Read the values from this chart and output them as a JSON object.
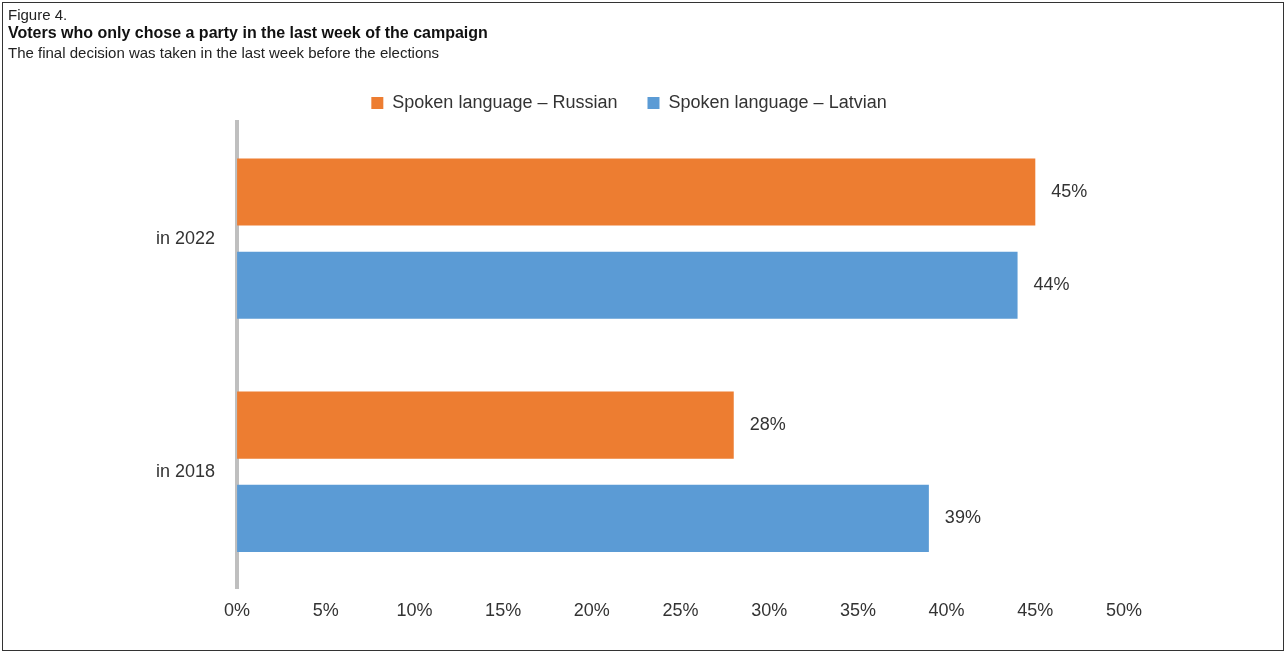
{
  "chart_data": {
    "type": "bar",
    "orientation": "horizontal",
    "title": "Voters who only chose a party in the last week of the campaign",
    "subtitle": "The final decision was taken in the last week before the elections",
    "annotations": [
      "Figure 4."
    ],
    "categories": [
      "in 2022",
      "in 2018"
    ],
    "series": [
      {
        "name": "Spoken language – Russian",
        "color": "#ed7d31",
        "values": [
          45,
          28
        ],
        "value_labels": [
          "45%",
          "28%"
        ]
      },
      {
        "name": "Spoken language – Latvian",
        "color": "#5b9bd5",
        "values": [
          44,
          39
        ],
        "value_labels": [
          "44%",
          "39%"
        ]
      }
    ],
    "xlim": [
      0,
      50
    ],
    "xticks": [
      {
        "value": 0,
        "label": "0%"
      },
      {
        "value": 5,
        "label": "5%"
      },
      {
        "value": 10,
        "label": "10%"
      },
      {
        "value": 15,
        "label": "15%"
      },
      {
        "value": 20,
        "label": "20%"
      },
      {
        "value": 25,
        "label": "25%"
      },
      {
        "value": 30,
        "label": "30%"
      },
      {
        "value": 35,
        "label": "35%"
      },
      {
        "value": 40,
        "label": "40%"
      },
      {
        "value": 45,
        "label": "45%"
      },
      {
        "value": 50,
        "label": "50%"
      }
    ],
    "grid": false,
    "legend": "top"
  }
}
